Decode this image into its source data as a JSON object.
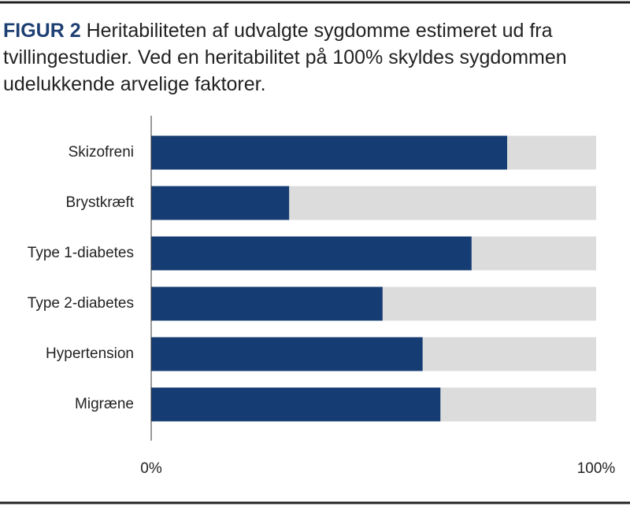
{
  "chart_data": {
    "type": "bar",
    "orientation": "horizontal",
    "label": "FIGUR 2",
    "title": "Heritabiliteten af udvalgte sygdomme estimeret ud fra tvillingestudier. Ved en heritabilitet på 100% skyldes sygdommen udelukkende arvelige faktorer.",
    "categories": [
      "Skizofreni",
      "Brystkræft",
      "Type 1-diabetes",
      "Type 2-diabetes",
      "Hypertension",
      "Migræne"
    ],
    "values": [
      80,
      31,
      72,
      52,
      61,
      65
    ],
    "color": "#163d73",
    "background_color": "#dcdcdc",
    "xlim": [
      0,
      100
    ],
    "xticks": [
      {
        "value": 0,
        "label": "0%"
      },
      {
        "value": 100,
        "label": "100%"
      }
    ]
  }
}
